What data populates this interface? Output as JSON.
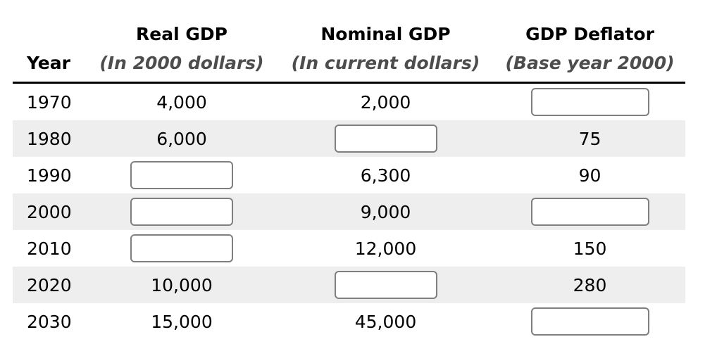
{
  "header": {
    "col_year": "Year",
    "col_real_title": "Real GDP",
    "col_real_sub": "(In 2000 dollars)",
    "col_nominal_title": "Nominal GDP",
    "col_nominal_sub": "(In current dollars)",
    "col_deflator_title": "GDP Deflator",
    "col_deflator_sub": "(Base year 2000)"
  },
  "rows": [
    {
      "year": "1970",
      "real": "4,000",
      "nominal": "2,000",
      "deflator": ""
    },
    {
      "year": "1980",
      "real": "6,000",
      "nominal": "",
      "deflator": "75"
    },
    {
      "year": "1990",
      "real": "",
      "nominal": "6,300",
      "deflator": "90"
    },
    {
      "year": "2000",
      "real": "",
      "nominal": "9,000",
      "deflator": ""
    },
    {
      "year": "2010",
      "real": "",
      "nominal": "12,000",
      "deflator": "150"
    },
    {
      "year": "2020",
      "real": "10,000",
      "nominal": "",
      "deflator": "280"
    },
    {
      "year": "2030",
      "real": "15,000",
      "nominal": "45,000",
      "deflator": ""
    }
  ],
  "colors": {
    "row_stripe": "#eeeeee",
    "header_rule": "#000000",
    "subtitle_text": "#4d4d4d",
    "input_border": "#7f7f7f",
    "body_text": "#000000"
  }
}
